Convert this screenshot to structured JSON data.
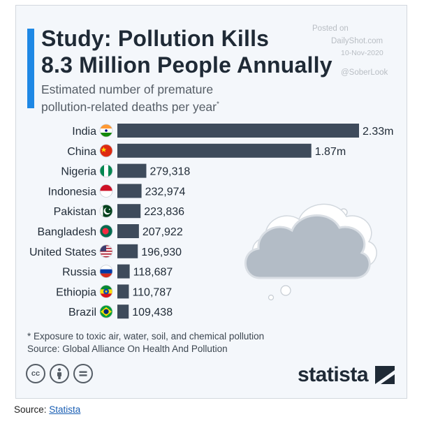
{
  "header": {
    "title_line1": "Study: Pollution Kills",
    "title_line2": "8.3 Million People Annually",
    "subtitle_line1": "Estimated number of premature",
    "subtitle_line2": "pollution-related deaths per year",
    "subtitle_mark": "*"
  },
  "watermark": {
    "line1": "Posted on",
    "line2": "DailyShot.com",
    "line3": "10-Nov-2020",
    "line4": "@SoberLook"
  },
  "colors": {
    "bar": "#3e4b5b",
    "accent": "#1e88e5",
    "card_bg": "#f4f7fb",
    "cloud_fill": "#b3bcc6",
    "cloud_stroke": "#d9dee4"
  },
  "chart_data": {
    "type": "bar",
    "orientation": "horizontal",
    "categories": [
      "India",
      "China",
      "Nigeria",
      "Indonesia",
      "Pakistan",
      "Bangladesh",
      "United States",
      "Russia",
      "Ethiopia",
      "Brazil"
    ],
    "values": [
      2330000,
      1870000,
      279318,
      232974,
      223836,
      207922,
      196930,
      118687,
      110787,
      109438
    ],
    "value_labels": [
      "2.33m",
      "1.87m",
      "279,318",
      "232,974",
      "223,836",
      "207,922",
      "196,930",
      "118,687",
      "110,787",
      "109,438"
    ],
    "flag_icons": [
      "india-flag-icon",
      "china-flag-icon",
      "nigeria-flag-icon",
      "indonesia-flag-icon",
      "pakistan-flag-icon",
      "bangladesh-flag-icon",
      "united-states-flag-icon",
      "russia-flag-icon",
      "ethiopia-flag-icon",
      "brazil-flag-icon"
    ],
    "grid": false,
    "legend": "none"
  },
  "footnote": {
    "line1": "* Exposure to toxic air, water, soil, and chemical pollution",
    "line2": "Source: Global Alliance On Health And Pollution"
  },
  "license_icons": [
    "creative-commons-icon",
    "attribution-icon",
    "no-derivatives-icon"
  ],
  "brand": "statista",
  "page_source": {
    "label": "Source: ",
    "link_text": "Statista"
  }
}
